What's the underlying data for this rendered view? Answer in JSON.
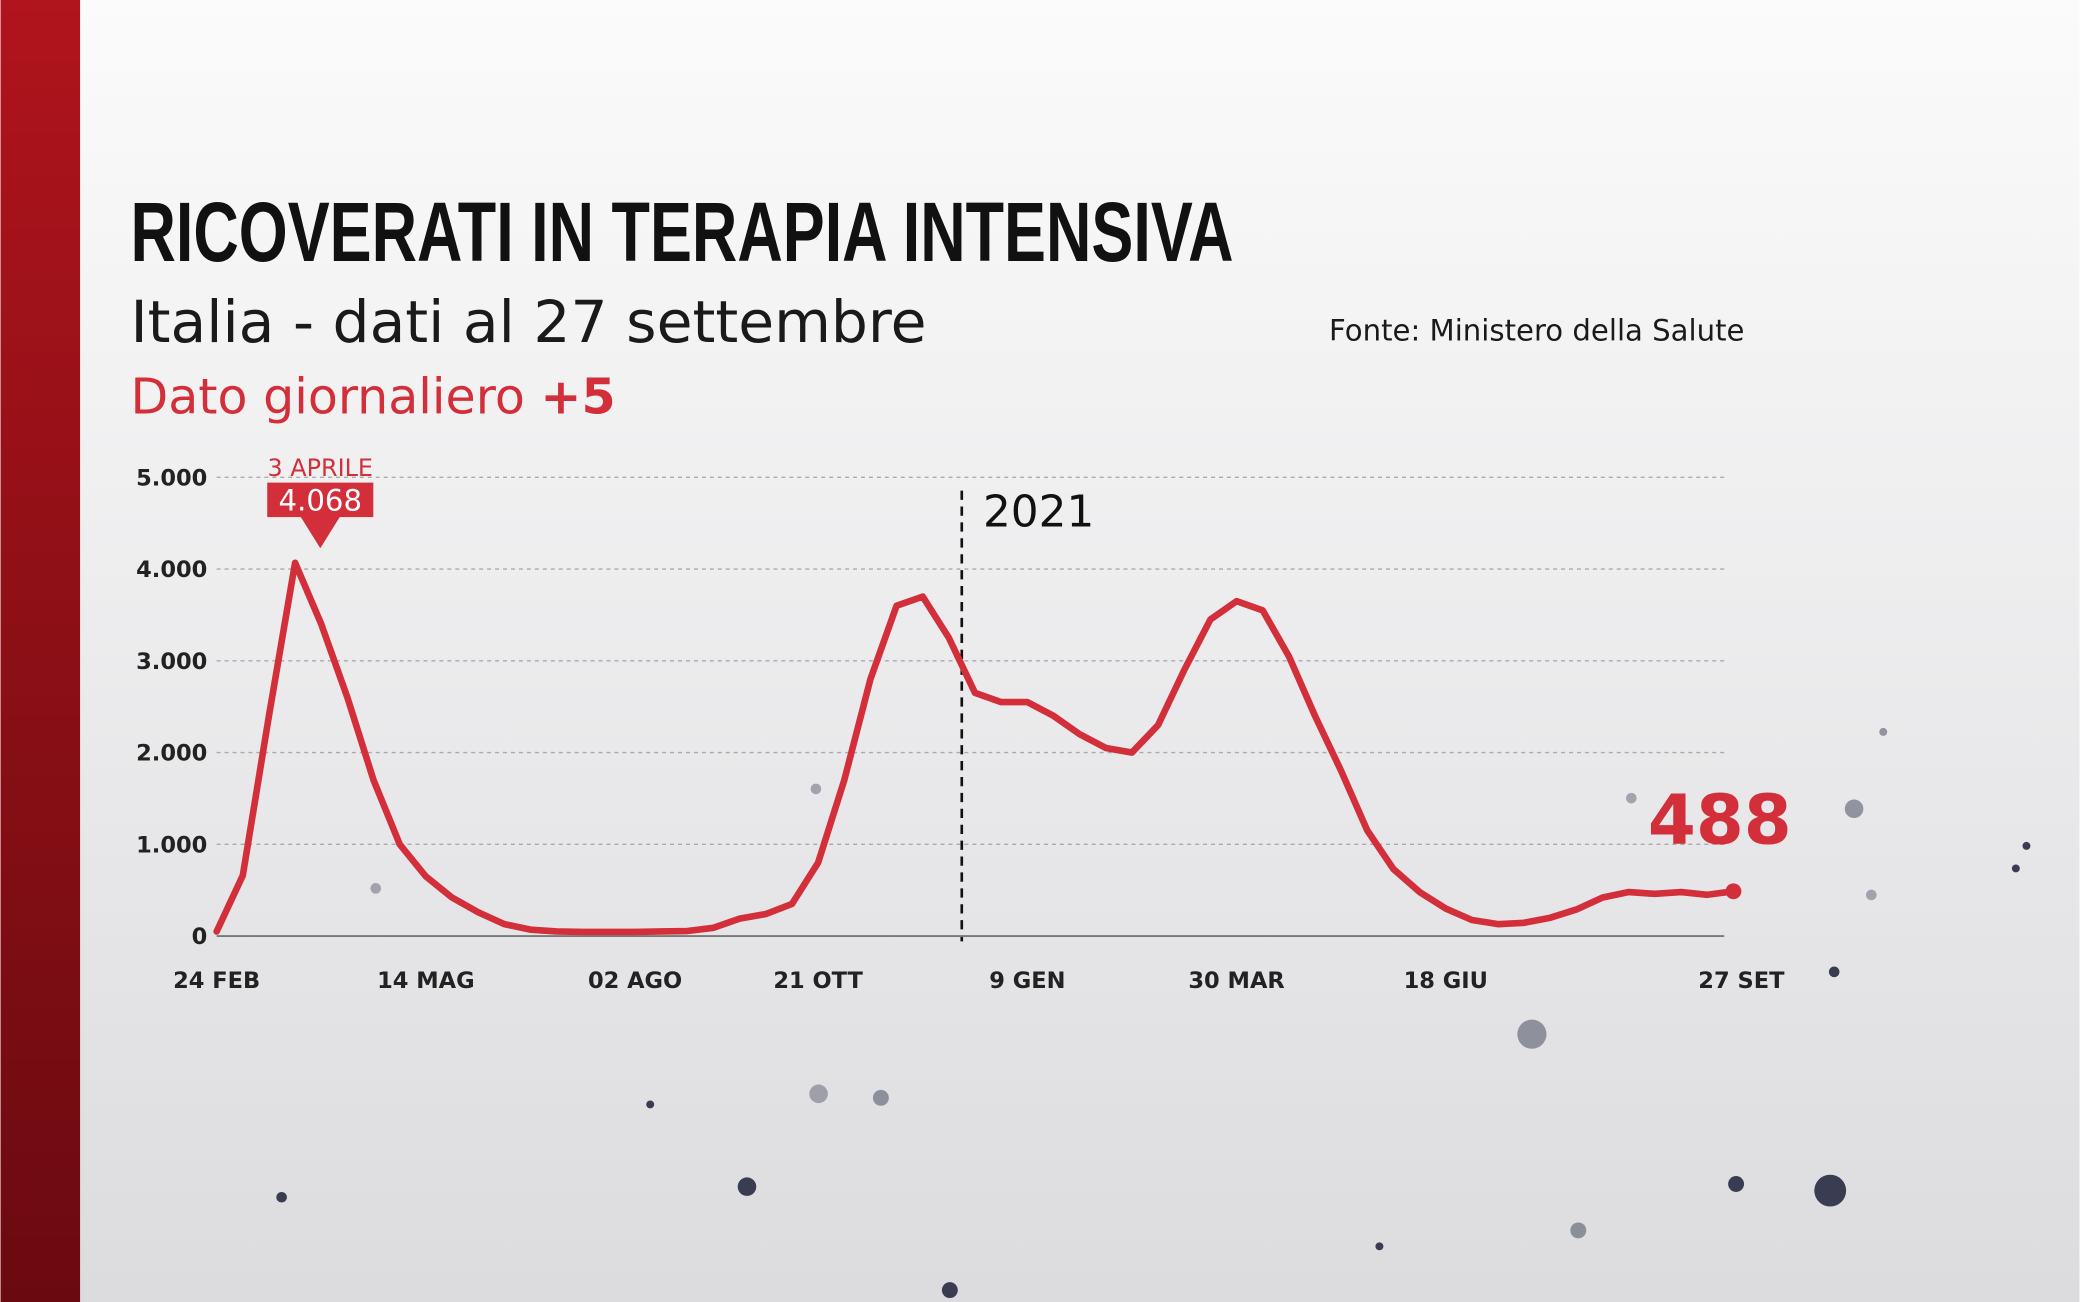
{
  "chart_data": {
    "type": "line",
    "title": "RICOVERATI IN TERAPIA INTENSIVA",
    "subtitle": "Italia - dati al 27 settembre",
    "source": "Fonte: Ministero della Salute",
    "daily_label": "Dato giornaliero",
    "daily_value": "+5",
    "annotations": [
      "2021"
    ],
    "peak_label": {
      "date": "3 APRILE",
      "value": 4068,
      "label": "4.068"
    },
    "categories": [
      "24 FEB",
      null,
      null,
      null,
      null,
      null,
      null,
      null,
      "14 MAG",
      null,
      null,
      null,
      null,
      null,
      null,
      null,
      "02 AGO",
      null,
      null,
      null,
      null,
      null,
      null,
      "21 OTT",
      null,
      null,
      null,
      null,
      null,
      null,
      null,
      "9 GEN",
      null,
      null,
      null,
      null,
      null,
      null,
      null,
      "30 MAR",
      null,
      null,
      null,
      null,
      null,
      null,
      null,
      "18 GIU",
      null,
      null,
      null,
      null,
      null,
      null,
      null,
      null,
      null,
      null,
      "27 SET"
    ],
    "series": [
      {
        "name": "Ricoverati",
        "color": "#d32f3a",
        "values": [
          50,
          660,
          2400,
          4068,
          3400,
          2600,
          1700,
          1000,
          650,
          420,
          260,
          130,
          70,
          50,
          45,
          45,
          45,
          50,
          55,
          90,
          190,
          240,
          350,
          800,
          1700,
          2800,
          3600,
          3700,
          3250,
          2650,
          2550,
          2550,
          2400,
          2200,
          2050,
          2000,
          2300,
          2900,
          3450,
          3650,
          3550,
          3050,
          2400,
          1800,
          1150,
          730,
          480,
          300,
          175,
          130,
          145,
          200,
          290,
          420,
          480,
          460,
          480,
          450,
          488
        ]
      }
    ],
    "ylim": [
      0,
      5000
    ],
    "yticks": [
      0,
      {
        "value": 1000,
        "label": "1.000"
      },
      {
        "value": 2000,
        "label": "2.000"
      },
      {
        "value": 3000,
        "label": "3.000"
      },
      {
        "value": 4000,
        "label": "4.000"
      },
      {
        "value": 5000,
        "label": "5.000"
      }
    ],
    "grid": true
  }
}
